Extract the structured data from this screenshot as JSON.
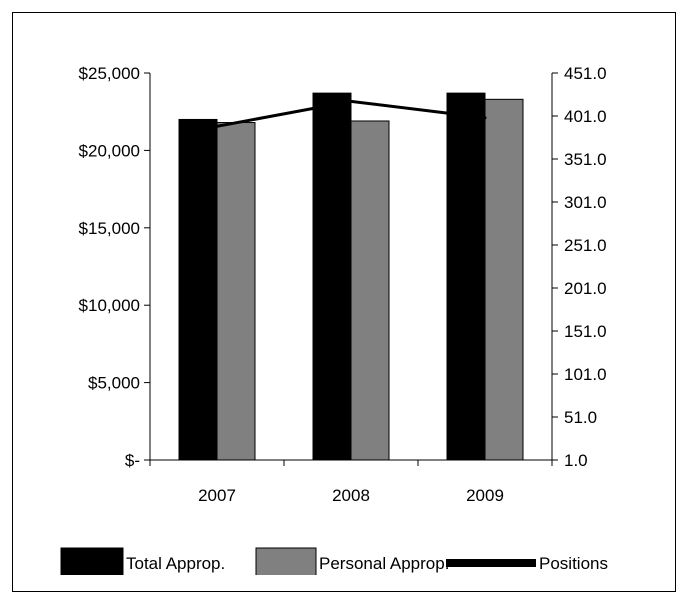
{
  "chart_data": {
    "type": "bar",
    "categories": [
      "2007",
      "2008",
      "2009"
    ],
    "series": [
      {
        "name": "Total Approp.",
        "kind": "bar",
        "axis": "left",
        "color": "#000000",
        "values": [
          22000,
          23700,
          23700
        ]
      },
      {
        "name": "Personal Approp.",
        "kind": "bar",
        "axis": "left",
        "color": "#808080",
        "values": [
          21800,
          21900,
          23300
        ]
      },
      {
        "name": "Positions",
        "kind": "line",
        "axis": "right",
        "color": "#000000",
        "values": [
          389,
          418,
          399
        ]
      }
    ],
    "y_left": {
      "min": 0,
      "max": 25000,
      "ticks": [
        0,
        5000,
        10000,
        15000,
        20000,
        25000
      ],
      "tick_labels": [
        "$-",
        "$5,000",
        "$10,000",
        "$15,000",
        "$20,000",
        "$25,000"
      ]
    },
    "y_right": {
      "min": 1.0,
      "max": 451.0,
      "ticks": [
        1,
        51,
        101,
        151,
        201,
        251,
        301,
        351,
        401,
        451
      ],
      "tick_labels": [
        "1.0",
        "51.0",
        "101.0",
        "151.0",
        "201.0",
        "251.0",
        "301.0",
        "351.0",
        "401.0",
        "451.0"
      ]
    },
    "legend": {
      "position": "bottom",
      "items": [
        "Total Approp.",
        "Personal Approp.",
        "Positions"
      ]
    },
    "grid": false
  }
}
